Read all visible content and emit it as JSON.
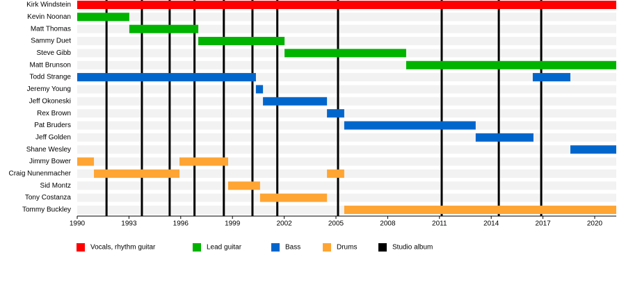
{
  "chart_data": {
    "type": "timeline",
    "categories": [
      "Kirk Windstein",
      "Kevin Noonan",
      "Matt Thomas",
      "Sammy Duet",
      "Steve Gibb",
      "Matt Brunson",
      "Todd Strange",
      "Jeremy Young",
      "Jeff Okoneski",
      "Rex Brown",
      "Pat Bruders",
      "Jeff Golden",
      "Shane Wesley",
      "Jimmy Bower",
      "Craig Nunenmacher",
      "Sid Montz",
      "Tony Costanza",
      "Tommy Buckley"
    ],
    "series": [
      {
        "name": "Vocals, rhythm guitar",
        "color": "#ff0000",
        "values": [
          [
            [
              1990,
              2021.25
            ]
          ],
          null,
          null,
          null,
          null,
          null,
          null,
          null,
          null,
          null,
          null,
          null,
          null,
          null,
          null,
          null,
          null,
          null
        ]
      },
      {
        "name": "Lead guitar",
        "color": "#00b300",
        "values": [
          null,
          [
            [
              1990,
              1993.02
            ]
          ],
          [
            [
              1993.02,
              1997.02
            ]
          ],
          [
            [
              1997.02,
              2002.02
            ]
          ],
          [
            [
              2002.02,
              2009.07
            ]
          ],
          [
            [
              2009.07,
              2021.25
            ]
          ],
          null,
          null,
          null,
          null,
          null,
          null,
          null,
          null,
          null,
          null,
          null,
          null
        ]
      },
      {
        "name": "Bass",
        "color": "#0066cc",
        "values": [
          null,
          null,
          null,
          null,
          null,
          null,
          [
            [
              1990,
              2000.36
            ],
            [
              2016.41,
              2018.59
            ]
          ],
          [
            [
              2000.36,
              2000.77
            ]
          ],
          [
            [
              2000.77,
              2004.48
            ]
          ],
          [
            [
              2004.48,
              2005.48
            ]
          ],
          [
            [
              2005.48,
              2013.1
            ]
          ],
          [
            [
              2013.1,
              2016.45
            ]
          ],
          [
            [
              2018.59,
              2021.25
            ]
          ],
          null,
          null,
          null,
          null,
          null
        ]
      },
      {
        "name": "Drums",
        "color": "#ffa533",
        "values": [
          null,
          null,
          null,
          null,
          null,
          null,
          null,
          null,
          null,
          null,
          null,
          null,
          null,
          [
            [
              1990,
              1990.97
            ],
            [
              1995.93,
              1998.75
            ]
          ],
          [
            [
              1990.97,
              1995.93
            ],
            [
              2004.48,
              2005.48
            ]
          ],
          [
            [
              1998.75,
              2000.6
            ]
          ],
          [
            [
              2000.6,
              2004.48
            ]
          ],
          [
            [
              2005.48,
              2021.25
            ]
          ]
        ]
      },
      {
        "name": "Studio album",
        "color": "#000000",
        "x": [
          1991.7,
          1993.75,
          1995.36,
          1996.8,
          1998.5,
          2000.16,
          2001.6,
          2005.12,
          2011.13,
          2014.44,
          2016.9
        ]
      }
    ],
    "xlim": [
      1990,
      2021.25
    ],
    "xticks": [
      1990,
      1993,
      1996,
      1999,
      2002,
      2005,
      2008,
      2011,
      2014,
      2017,
      2020
    ]
  }
}
